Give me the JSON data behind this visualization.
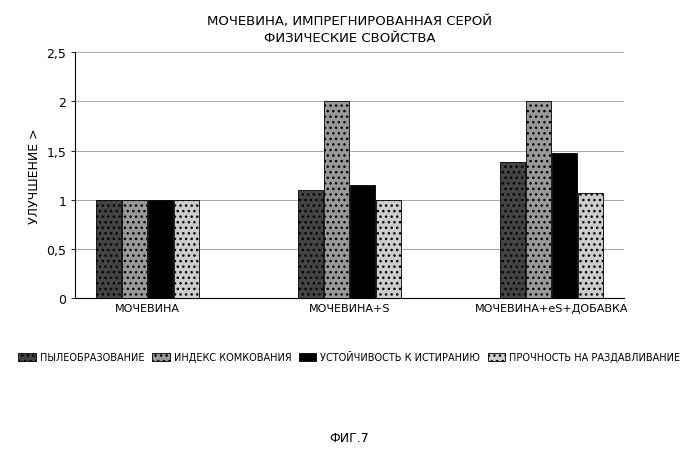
{
  "title_line1": "МОЧЕВИНА, ИМПРЕГНИРОВАННАЯ СЕРОЙ",
  "title_line2": "ФИЗИЧЕСКИЕ СВОЙСТВА",
  "ylabel": "УЛУЧШЕНИЕ >",
  "groups": [
    "МОЧЕВИНА",
    "МОЧЕВИНА+S",
    "МОЧЕВИНА+eS+ДОБАВКА"
  ],
  "legend_labels": [
    "ПЫЛЕОБРАЗОВАНИЕ",
    "ИНДЕКС КОМКОВАНИЯ",
    "УСТОЙЧИВОСТЬ К ИСТИРАНИЮ",
    "ПРОЧНОСТЬ НА РАЗДАВЛИВАНИЕ"
  ],
  "values": [
    [
      1.0,
      1.0,
      1.0,
      1.0
    ],
    [
      1.1,
      2.0,
      1.15,
      1.0
    ],
    [
      1.38,
      2.0,
      1.48,
      1.07
    ]
  ],
  "ylim": [
    0,
    2.5
  ],
  "yticks": [
    0,
    0.5,
    1.0,
    1.5,
    2.0,
    2.5
  ],
  "figsize": [
    6.99,
    4.52
  ],
  "dpi": 100,
  "fig_label": "ФИГ.7",
  "background_color": "#ffffff"
}
